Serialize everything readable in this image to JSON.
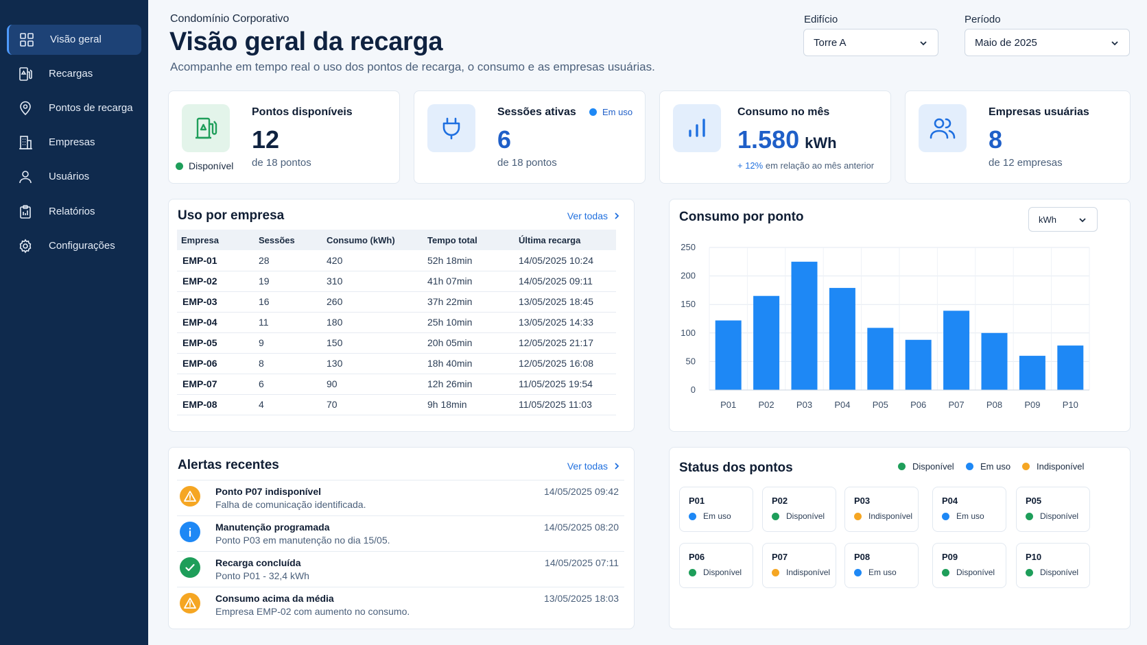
{
  "sidebar": {
    "items": [
      {
        "label": "Visão geral",
        "icon": "grid-icon",
        "active": true
      },
      {
        "label": "Recargas",
        "icon": "fuel-icon"
      },
      {
        "label": "Pontos de recarga",
        "icon": "location-pin-icon"
      },
      {
        "label": "Empresas",
        "icon": "building-icon"
      },
      {
        "label": "Usuários",
        "icon": "user-icon"
      },
      {
        "label": "Relatórios",
        "icon": "clipboard-icon"
      },
      {
        "label": "Configurações",
        "icon": "gear-icon"
      }
    ]
  },
  "header": {
    "org": "Condomínio Corporativo",
    "title": "Visão geral da recarga",
    "subtitle": "Acompanhe em tempo real o uso dos pontos de recarga, o consumo e as empresas usuárias."
  },
  "filters": {
    "building_label": "Edifício",
    "building_value": "Torre A",
    "period_label": "Período",
    "period_value": "Maio de 2025"
  },
  "kpis": {
    "available": {
      "title": "Pontos disponíveis",
      "value": "12",
      "sub": "de 18 pontos",
      "badge": "Disponível",
      "icon": "fuel-pump-icon"
    },
    "sessions": {
      "title": "Sessões ativas",
      "value": "6",
      "sub": "de 18 pontos",
      "badge": "Em uso",
      "icon": "plug-icon"
    },
    "consumption": {
      "title": "Consumo no mês",
      "value": "1.580",
      "unit": "kWh",
      "change": "+ 12%",
      "change_text": "em relação ao mês anterior",
      "icon": "bar-chart-icon"
    },
    "companies": {
      "title": "Empresas usuárias",
      "value": "8",
      "sub": "de 12 empresas",
      "icon": "users-icon"
    }
  },
  "usage": {
    "title": "Uso por empresa",
    "link": "Ver todas",
    "columns": [
      "Empresa",
      "Sessões",
      "Consumo (kWh)",
      "Tempo total",
      "Última recarga"
    ],
    "rows": [
      [
        "EMP-01",
        "28",
        "420",
        "52h 18min",
        "14/05/2025 10:24"
      ],
      [
        "EMP-02",
        "19",
        "310",
        "41h 07min",
        "14/05/2025 09:11"
      ],
      [
        "EMP-03",
        "16",
        "260",
        "37h 22min",
        "13/05/2025 18:45"
      ],
      [
        "EMP-04",
        "11",
        "180",
        "25h 10min",
        "13/05/2025 14:33"
      ],
      [
        "EMP-05",
        "9",
        "150",
        "20h 05min",
        "12/05/2025 21:17"
      ],
      [
        "EMP-06",
        "8",
        "130",
        "18h 40min",
        "12/05/2025 16:08"
      ],
      [
        "EMP-07",
        "6",
        "90",
        "12h 26min",
        "11/05/2025 19:54"
      ],
      [
        "EMP-08",
        "4",
        "70",
        "9h 18min",
        "11/05/2025 11:03"
      ]
    ]
  },
  "chart_panel": {
    "title": "Consumo por ponto",
    "unit_select": "kWh"
  },
  "chart_data": {
    "type": "bar",
    "categories": [
      "P01",
      "P02",
      "P03",
      "P04",
      "P05",
      "P06",
      "P07",
      "P08",
      "P09",
      "P10"
    ],
    "values": [
      122,
      165,
      225,
      179,
      109,
      88,
      139,
      100,
      60,
      78
    ],
    "ylim": [
      0,
      250
    ],
    "yticks": [
      "0",
      "50",
      "100",
      "150",
      "200",
      "250"
    ],
    "grid": true,
    "bar_color": "#1e88f5"
  },
  "alerts": {
    "title": "Alertas recentes",
    "link": "Ver todas",
    "items": [
      {
        "title": "Ponto P07 indisponível",
        "desc": "Falha de comunicação identificada.",
        "time": "14/05/2025 09:42",
        "icon": "warning-icon",
        "color": "#f5a623"
      },
      {
        "title": "Manutenção programada",
        "desc": "Ponto P03 em manutenção no dia 15/05.",
        "time": "14/05/2025 08:20",
        "icon": "info-icon",
        "color": "#1e88f5"
      },
      {
        "title": "Recarga concluída",
        "desc": "Ponto P01 - 32,4 kWh",
        "time": "14/05/2025 07:11",
        "icon": "check-icon",
        "color": "#1e9e5a"
      },
      {
        "title": "Consumo acima da média",
        "desc": "Empresa EMP-02 com aumento no consumo.",
        "time": "13/05/2025 18:03",
        "icon": "warning-icon",
        "color": "#f5a623"
      }
    ]
  },
  "status": {
    "title": "Status dos pontos",
    "legend": [
      {
        "label": "Disponível",
        "color": "#1e9e5a"
      },
      {
        "label": "Em uso",
        "color": "#1e88f5"
      },
      {
        "label": "Indisponível",
        "color": "#f5a623"
      }
    ],
    "points": [
      {
        "name": "P01",
        "status": "Em uso",
        "color": "#1e88f5"
      },
      {
        "name": "P02",
        "status": "Disponível",
        "color": "#1e9e5a"
      },
      {
        "name": "P03",
        "status": "Indisponível",
        "color": "#f5a623"
      },
      {
        "name": "P04",
        "status": "Em uso",
        "color": "#1e88f5"
      },
      {
        "name": "P05",
        "status": "Disponível",
        "color": "#1e9e5a"
      },
      {
        "name": "P06",
        "status": "Disponível",
        "color": "#1e9e5a"
      },
      {
        "name": "P07",
        "status": "Indisponível",
        "color": "#f5a623"
      },
      {
        "name": "P08",
        "status": "Em uso",
        "color": "#1e88f5"
      },
      {
        "name": "P09",
        "status": "Disponível",
        "color": "#1e9e5a"
      },
      {
        "name": "P10",
        "status": "Disponível",
        "color": "#1e9e5a"
      }
    ]
  },
  "colors": {
    "available": "#1e9e5a",
    "in_use": "#1e88f5",
    "unavailable": "#f5a623",
    "accent": "#1f6fde",
    "sidebar": "#0f2a4d"
  }
}
